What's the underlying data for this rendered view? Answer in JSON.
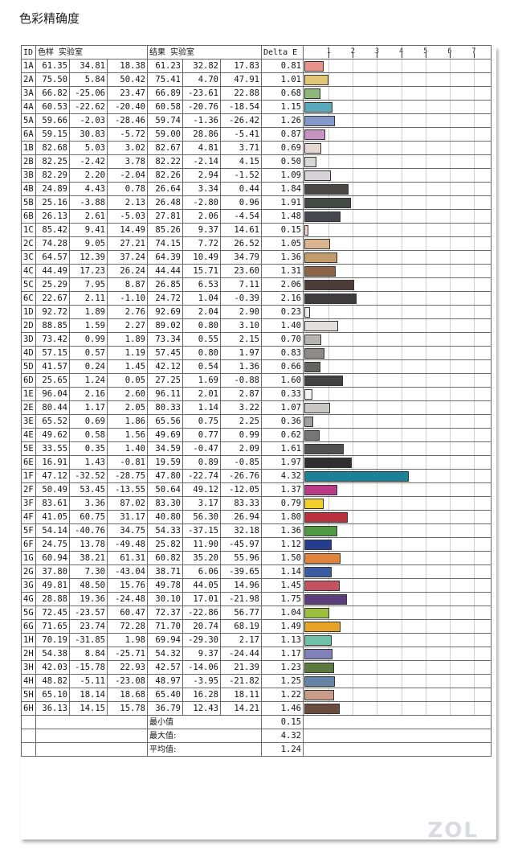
{
  "page_title": "色彩精确度",
  "chart_data": {
    "type": "table",
    "headers": {
      "id": "ID",
      "sample": "色样 实验室",
      "result": "结果 实验室",
      "delta": "Delta E"
    },
    "axis_ticks": [
      "1",
      "2",
      "3",
      "4",
      "5",
      "6",
      "7"
    ],
    "xlim": [
      0,
      7.7
    ],
    "rows": [
      {
        "id": "1A",
        "s": [
          "61.35",
          "34.81",
          "18.38"
        ],
        "r": [
          "61.23",
          "32.82",
          "17.83"
        ],
        "de": "0.81",
        "color": "#e8928c"
      },
      {
        "id": "2A",
        "s": [
          "75.50",
          "5.84",
          "50.42"
        ],
        "r": [
          "75.41",
          "4.70",
          "47.91"
        ],
        "de": "1.01",
        "color": "#e2c675"
      },
      {
        "id": "3A",
        "s": [
          "66.82",
          "-25.06",
          "23.47"
        ],
        "r": [
          "66.89",
          "-23.61",
          "22.88"
        ],
        "de": "0.68",
        "color": "#8ab97a"
      },
      {
        "id": "4A",
        "s": [
          "60.53",
          "-22.62",
          "-20.40"
        ],
        "r": [
          "60.58",
          "-20.76",
          "-18.54"
        ],
        "de": "1.15",
        "color": "#5aa9ba"
      },
      {
        "id": "5A",
        "s": [
          "59.66",
          "-2.03",
          "-28.46"
        ],
        "r": [
          "59.74",
          "-1.36",
          "-26.42"
        ],
        "de": "1.26",
        "color": "#8499c9"
      },
      {
        "id": "6A",
        "s": [
          "59.15",
          "30.83",
          "-5.72"
        ],
        "r": [
          "59.00",
          "28.86",
          "-5.41"
        ],
        "de": "0.87",
        "color": "#c793c0"
      },
      {
        "id": "1B",
        "s": [
          "82.68",
          "5.03",
          "3.02"
        ],
        "r": [
          "82.67",
          "4.81",
          "3.71"
        ],
        "de": "0.69",
        "color": "#e7d7d3"
      },
      {
        "id": "2B",
        "s": [
          "82.25",
          "-2.42",
          "3.78"
        ],
        "r": [
          "82.22",
          "-2.14",
          "4.15"
        ],
        "de": "0.50",
        "color": "#d6d8d1"
      },
      {
        "id": "3B",
        "s": [
          "82.29",
          "2.20",
          "-2.04"
        ],
        "r": [
          "82.26",
          "2.94",
          "-1.52"
        ],
        "de": "1.09",
        "color": "#d7d3d9"
      },
      {
        "id": "4B",
        "s": [
          "24.89",
          "4.43",
          "0.78"
        ],
        "r": [
          "26.64",
          "3.34",
          "0.44"
        ],
        "de": "1.84",
        "color": "#4a4646"
      },
      {
        "id": "5B",
        "s": [
          "25.16",
          "-3.88",
          "2.13"
        ],
        "r": [
          "26.48",
          "-2.80",
          "0.96"
        ],
        "de": "1.91",
        "color": "#434a44"
      },
      {
        "id": "6B",
        "s": [
          "26.13",
          "2.61",
          "-5.03"
        ],
        "r": [
          "27.81",
          "2.06",
          "-4.54"
        ],
        "de": "1.48",
        "color": "#46464f"
      },
      {
        "id": "1C",
        "s": [
          "85.42",
          "9.41",
          "14.49"
        ],
        "r": [
          "85.26",
          "9.37",
          "14.61"
        ],
        "de": "0.15",
        "color": "#f2d9cb"
      },
      {
        "id": "2C",
        "s": [
          "74.28",
          "9.05",
          "27.21"
        ],
        "r": [
          "74.15",
          "7.72",
          "26.52"
        ],
        "de": "1.05",
        "color": "#d9b48f"
      },
      {
        "id": "3C",
        "s": [
          "64.57",
          "12.39",
          "37.24"
        ],
        "r": [
          "64.39",
          "10.49",
          "34.79"
        ],
        "de": "1.36",
        "color": "#c49b6a"
      },
      {
        "id": "4C",
        "s": [
          "44.49",
          "17.23",
          "26.24"
        ],
        "r": [
          "44.44",
          "15.71",
          "23.60"
        ],
        "de": "1.31",
        "color": "#8d6649"
      },
      {
        "id": "5C",
        "s": [
          "25.29",
          "7.95",
          "8.87"
        ],
        "r": [
          "26.85",
          "6.53",
          "7.11"
        ],
        "de": "2.06",
        "color": "#4d3d38"
      },
      {
        "id": "6C",
        "s": [
          "22.67",
          "2.11",
          "-1.10"
        ],
        "r": [
          "24.72",
          "1.04",
          "-0.39"
        ],
        "de": "2.16",
        "color": "#3d3b3c"
      },
      {
        "id": "1D",
        "s": [
          "92.72",
          "1.89",
          "2.76"
        ],
        "r": [
          "92.69",
          "2.04",
          "2.90"
        ],
        "de": "0.23",
        "color": "#edeae6"
      },
      {
        "id": "2D",
        "s": [
          "88.85",
          "1.59",
          "2.27"
        ],
        "r": [
          "89.02",
          "0.80",
          "3.10"
        ],
        "de": "1.40",
        "color": "#e2dfdc"
      },
      {
        "id": "3D",
        "s": [
          "73.42",
          "0.99",
          "1.89"
        ],
        "r": [
          "73.34",
          "0.55",
          "2.15"
        ],
        "de": "0.70",
        "color": "#b6b4b2"
      },
      {
        "id": "4D",
        "s": [
          "57.15",
          "0.57",
          "1.19"
        ],
        "r": [
          "57.45",
          "0.80",
          "1.97"
        ],
        "de": "0.83",
        "color": "#8c8b8a"
      },
      {
        "id": "5D",
        "s": [
          "41.57",
          "0.24",
          "1.45"
        ],
        "r": [
          "42.12",
          "0.54",
          "1.36"
        ],
        "de": "0.66",
        "color": "#646463"
      },
      {
        "id": "6D",
        "s": [
          "25.65",
          "1.24",
          "0.05"
        ],
        "r": [
          "27.25",
          "1.69",
          "-0.88"
        ],
        "de": "1.60",
        "color": "#424242"
      },
      {
        "id": "1E",
        "s": [
          "96.04",
          "2.16",
          "2.60"
        ],
        "r": [
          "96.11",
          "2.01",
          "2.87"
        ],
        "de": "0.33",
        "color": "#f6f3f1"
      },
      {
        "id": "2E",
        "s": [
          "80.44",
          "1.17",
          "2.05"
        ],
        "r": [
          "80.33",
          "1.14",
          "3.22"
        ],
        "de": "1.07",
        "color": "#cac8c5"
      },
      {
        "id": "3E",
        "s": [
          "65.52",
          "0.69",
          "1.86"
        ],
        "r": [
          "65.56",
          "0.75",
          "2.25"
        ],
        "de": "0.36",
        "color": "#a09f9d"
      },
      {
        "id": "4E",
        "s": [
          "49.62",
          "0.58",
          "1.56"
        ],
        "r": [
          "49.69",
          "0.77",
          "0.99"
        ],
        "de": "0.62",
        "color": "#777676"
      },
      {
        "id": "5E",
        "s": [
          "33.55",
          "0.35",
          "1.40"
        ],
        "r": [
          "34.59",
          "-0.47",
          "2.09"
        ],
        "de": "1.61",
        "color": "#525252"
      },
      {
        "id": "6E",
        "s": [
          "16.91",
          "1.43",
          "-0.81"
        ],
        "r": [
          "19.59",
          "0.89",
          "-0.85"
        ],
        "de": "1.97",
        "color": "#2f2f30"
      },
      {
        "id": "1F",
        "s": [
          "47.12",
          "-32.52",
          "-28.75"
        ],
        "r": [
          "47.80",
          "-22.74",
          "-26.76"
        ],
        "de": "4.32",
        "color": "#1a8199"
      },
      {
        "id": "2F",
        "s": [
          "50.49",
          "53.45",
          "-13.55"
        ],
        "r": [
          "50.64",
          "49.12",
          "-12.05"
        ],
        "de": "1.37",
        "color": "#bb3a88"
      },
      {
        "id": "3F",
        "s": [
          "83.61",
          "3.36",
          "87.02"
        ],
        "r": [
          "83.30",
          "3.17",
          "83.33"
        ],
        "de": "0.79",
        "color": "#f2cf2b"
      },
      {
        "id": "4F",
        "s": [
          "41.05",
          "60.75",
          "31.17"
        ],
        "r": [
          "40.80",
          "56.30",
          "26.94"
        ],
        "de": "1.80",
        "color": "#b7313f"
      },
      {
        "id": "5F",
        "s": [
          "54.14",
          "-40.76",
          "34.75"
        ],
        "r": [
          "54.33",
          "-37.15",
          "32.18"
        ],
        "de": "1.36",
        "color": "#4f9a43"
      },
      {
        "id": "6F",
        "s": [
          "24.75",
          "13.78",
          "-49.48"
        ],
        "r": [
          "25.82",
          "11.90",
          "-45.97"
        ],
        "de": "1.12",
        "color": "#253d8e"
      },
      {
        "id": "1G",
        "s": [
          "60.94",
          "38.21",
          "61.31"
        ],
        "r": [
          "60.82",
          "35.20",
          "55.96"
        ],
        "de": "1.50",
        "color": "#df843a"
      },
      {
        "id": "2G",
        "s": [
          "37.80",
          "7.30",
          "-43.04"
        ],
        "r": [
          "38.71",
          "6.06",
          "-39.65"
        ],
        "de": "1.14",
        "color": "#3d5ba3"
      },
      {
        "id": "3G",
        "s": [
          "49.81",
          "48.50",
          "15.76"
        ],
        "r": [
          "49.78",
          "44.05",
          "14.96"
        ],
        "de": "1.45",
        "color": "#c4515f"
      },
      {
        "id": "4G",
        "s": [
          "28.88",
          "19.36",
          "-24.48"
        ],
        "r": [
          "30.10",
          "17.01",
          "-21.98"
        ],
        "de": "1.75",
        "color": "#5a3d7a"
      },
      {
        "id": "5G",
        "s": [
          "72.45",
          "-23.57",
          "60.47"
        ],
        "r": [
          "72.37",
          "-22.86",
          "56.77"
        ],
        "de": "1.04",
        "color": "#9cbe3e"
      },
      {
        "id": "6G",
        "s": [
          "71.65",
          "23.74",
          "72.28"
        ],
        "r": [
          "71.70",
          "20.74",
          "68.19"
        ],
        "de": "1.49",
        "color": "#e9a329"
      },
      {
        "id": "1H",
        "s": [
          "70.19",
          "-31.85",
          "1.98"
        ],
        "r": [
          "69.94",
          "-29.30",
          "2.17"
        ],
        "de": "1.13",
        "color": "#6fc1a7"
      },
      {
        "id": "2H",
        "s": [
          "54.38",
          "8.84",
          "-25.71"
        ],
        "r": [
          "54.32",
          "9.37",
          "-24.44"
        ],
        "de": "1.17",
        "color": "#8281b9"
      },
      {
        "id": "3H",
        "s": [
          "42.03",
          "-15.78",
          "22.93"
        ],
        "r": [
          "42.57",
          "-14.06",
          "21.39"
        ],
        "de": "1.23",
        "color": "#5b7a3f"
      },
      {
        "id": "4H",
        "s": [
          "48.82",
          "-5.11",
          "-23.08"
        ],
        "r": [
          "48.97",
          "-3.95",
          "-21.82"
        ],
        "de": "1.25",
        "color": "#6483a7"
      },
      {
        "id": "5H",
        "s": [
          "65.10",
          "18.14",
          "18.68"
        ],
        "r": [
          "65.40",
          "16.28",
          "18.11"
        ],
        "de": "1.22",
        "color": "#c99c87"
      },
      {
        "id": "6H",
        "s": [
          "36.13",
          "14.15",
          "15.78"
        ],
        "r": [
          "36.79",
          "12.43",
          "14.21"
        ],
        "de": "1.46",
        "color": "#6c4c3e"
      }
    ],
    "summary": [
      {
        "label": "最小值",
        "value": "0.15"
      },
      {
        "label": "最大值:",
        "value": "4.32"
      },
      {
        "label": "平均值:",
        "value": "1.24"
      }
    ]
  },
  "watermark": "ZOL"
}
